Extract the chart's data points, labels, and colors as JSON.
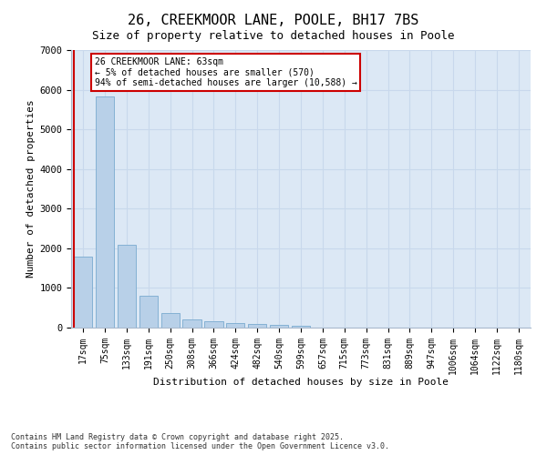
{
  "title": "26, CREEKMOOR LANE, POOLE, BH17 7BS",
  "subtitle": "Size of property relative to detached houses in Poole",
  "xlabel": "Distribution of detached houses by size in Poole",
  "ylabel": "Number of detached properties",
  "categories": [
    "17sqm",
    "75sqm",
    "133sqm",
    "191sqm",
    "250sqm",
    "308sqm",
    "366sqm",
    "424sqm",
    "482sqm",
    "540sqm",
    "599sqm",
    "657sqm",
    "715sqm",
    "773sqm",
    "831sqm",
    "889sqm",
    "947sqm",
    "1006sqm",
    "1064sqm",
    "1122sqm",
    "1180sqm"
  ],
  "values": [
    1780,
    5820,
    2090,
    810,
    370,
    210,
    150,
    110,
    90,
    70,
    55,
    0,
    0,
    0,
    0,
    0,
    0,
    0,
    0,
    0,
    0
  ],
  "bar_color": "#b8d0e8",
  "bar_edge_color": "#7aaad0",
  "vline_color": "#cc0000",
  "annotation_title": "26 CREEKMOOR LANE: 63sqm",
  "annotation_line1": "← 5% of detached houses are smaller (570)",
  "annotation_line2": "94% of semi-detached houses are larger (10,588) →",
  "annotation_box_edgecolor": "#cc0000",
  "ylim_max": 7000,
  "yticks": [
    0,
    1000,
    2000,
    3000,
    4000,
    5000,
    6000,
    7000
  ],
  "fig_bg_color": "#ffffff",
  "plot_bg_color": "#dce8f5",
  "grid_color": "#c8d8ec",
  "footer_line1": "Contains HM Land Registry data © Crown copyright and database right 2025.",
  "footer_line2": "Contains public sector information licensed under the Open Government Licence v3.0."
}
